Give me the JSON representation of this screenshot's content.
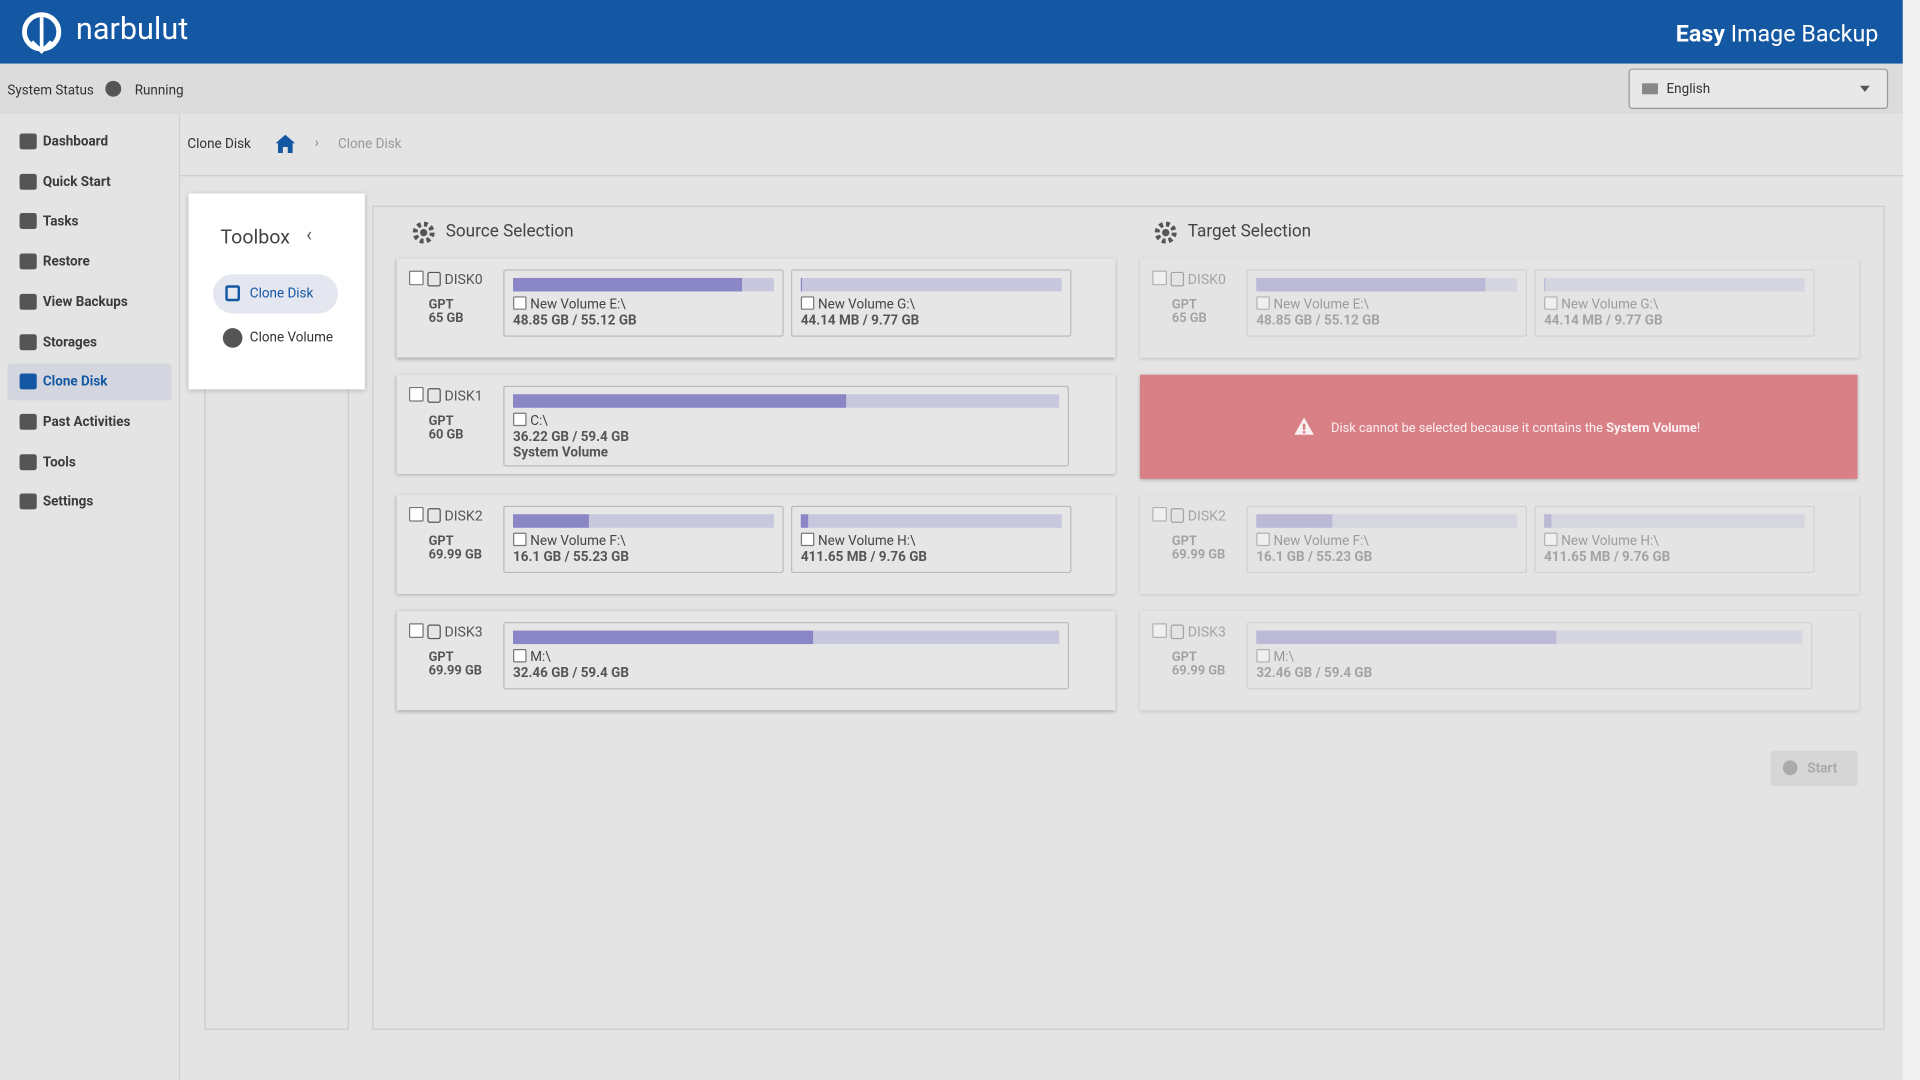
{
  "header": {
    "brand": "narbulut",
    "app_title_bold": "Easy",
    "app_title": "Image Backup"
  },
  "status": {
    "label": "System Status",
    "state": "Running",
    "language": "English"
  },
  "sidebar": [
    "Dashboard",
    "Quick Start",
    "Tasks",
    "Restore",
    "View Backups",
    "Storages",
    "Clone Disk",
    "Past Activities",
    "Tools",
    "Settings"
  ],
  "breadcrumb": {
    "title": "Clone Disk",
    "current": "Clone Disk"
  },
  "toolbox": {
    "title": "Toolbox",
    "items": [
      "Clone Disk",
      "Clone Volume"
    ]
  },
  "source": {
    "title": "Source Selection",
    "disks": [
      {
        "name": "DISK0",
        "style": "GPT",
        "size": "65 GB",
        "volumes": [
          {
            "label": "New Volume E:\\",
            "usage": "48.85 GB / 55.12 GB"
          },
          {
            "label": "New Volume G:\\",
            "usage": "44.14 MB / 9.77 GB"
          }
        ]
      },
      {
        "name": "DISK1",
        "style": "GPT",
        "size": "60 GB",
        "volumes": [
          {
            "label": "C:\\",
            "usage": "36.22 GB / 59.4 GB",
            "note": "System Volume"
          }
        ]
      },
      {
        "name": "DISK2",
        "style": "GPT",
        "size": "69.99 GB",
        "volumes": [
          {
            "label": "New Volume F:\\",
            "usage": "16.1 GB / 55.23 GB"
          },
          {
            "label": "New Volume H:\\",
            "usage": "411.65 MB / 9.76 GB"
          }
        ]
      },
      {
        "name": "DISK3",
        "style": "GPT",
        "size": "69.99 GB",
        "volumes": [
          {
            "label": "M:\\",
            "usage": "32.46 GB / 59.4 GB"
          }
        ]
      }
    ]
  },
  "target": {
    "title": "Target Selection",
    "disks": [
      {
        "name": "DISK0",
        "style": "GPT",
        "size": "65 GB",
        "volumes": [
          {
            "label": "New Volume E:\\",
            "usage": "48.85 GB / 55.12 GB"
          },
          {
            "label": "New Volume G:\\",
            "usage": "44.14 MB / 9.77 GB"
          }
        ]
      },
      {
        "name": "DISK2",
        "style": "GPT",
        "size": "69.99 GB",
        "volumes": [
          {
            "label": "New Volume F:\\",
            "usage": "16.1 GB / 55.23 GB"
          },
          {
            "label": "New Volume H:\\",
            "usage": "411.65 MB / 9.76 GB"
          }
        ]
      },
      {
        "name": "DISK3",
        "style": "GPT",
        "size": "69.99 GB",
        "volumes": [
          {
            "label": "M:\\",
            "usage": "32.46 GB / 59.4 GB"
          }
        ]
      }
    ],
    "warning": {
      "text": "Disk cannot be selected because it contains the",
      "bold": "System Volume",
      "end": "!"
    }
  },
  "start": "Start"
}
